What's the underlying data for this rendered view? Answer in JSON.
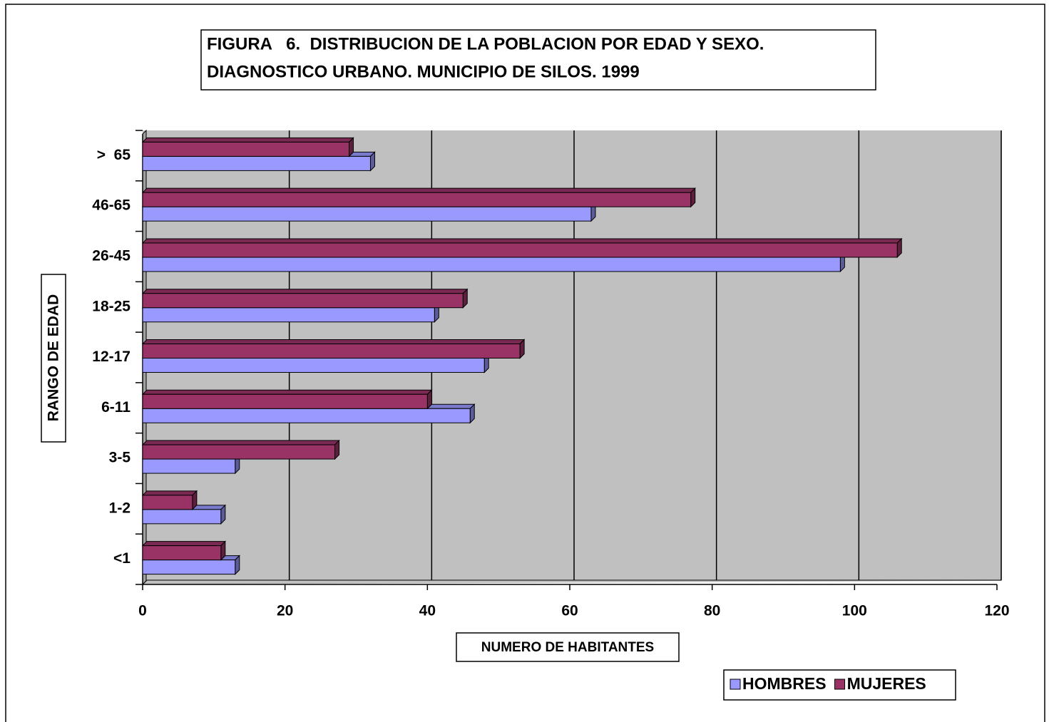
{
  "chart_data": {
    "type": "bar",
    "orientation": "horizontal",
    "title": [
      "FIGURA   6.  DISTRIBUCION DE LA POBLACION POR EDAD Y SEXO.",
      "DIAGNOSTICO URBANO. MUNICIPIO DE SILOS. 1999"
    ],
    "xlabel": "NUMERO DE HABITANTES",
    "ylabel": "RANGO DE EDAD",
    "categories": [
      "<1",
      "1-2",
      "3-5",
      "6-11",
      "12-17",
      "18-25",
      "26-45",
      "46-65",
      ">  65"
    ],
    "series": [
      {
        "name": "HOMBRES",
        "color": "#9999ff",
        "values": [
          13,
          11,
          13,
          46,
          48,
          41,
          98,
          63,
          32
        ]
      },
      {
        "name": "MUJERES",
        "color": "#993366",
        "values": [
          11,
          7,
          27,
          40,
          53,
          45,
          106,
          77,
          29
        ]
      }
    ],
    "xlim": [
      0,
      120
    ],
    "xticks": [
      0,
      20,
      40,
      60,
      80,
      100,
      120
    ],
    "grid": true,
    "legend": "bottom-right"
  }
}
